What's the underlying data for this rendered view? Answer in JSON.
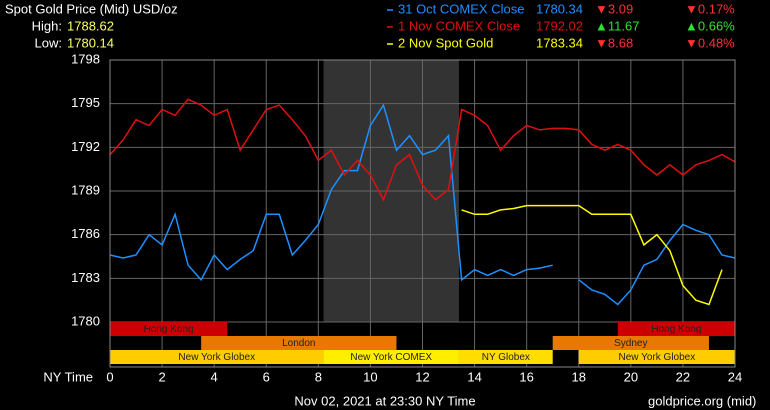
{
  "chart_data": {
    "type": "line",
    "title": "Spot Gold Price (Mid) USD/oz",
    "high_label": "High:",
    "high": 1788.62,
    "low_label": "Low:",
    "low": 1780.14,
    "x_label": "NY Time",
    "footer": "Nov 02, 2021 at 23:30 NY Time",
    "source": "goldprice.org (mid)",
    "xlim": [
      0,
      24
    ],
    "xticks": [
      0,
      2,
      4,
      6,
      8,
      10,
      12,
      14,
      16,
      18,
      20,
      22,
      24
    ],
    "ylim": [
      1780,
      1798
    ],
    "yticks": [
      1780,
      1783,
      1786,
      1789,
      1792,
      1795,
      1798
    ],
    "grid": true,
    "x": [
      0,
      0.5,
      1,
      1.5,
      2,
      2.5,
      3,
      3.5,
      4,
      4.5,
      5,
      5.5,
      6,
      6.5,
      7,
      7.5,
      8,
      8.5,
      9,
      9.5,
      10,
      10.5,
      11,
      11.5,
      12,
      12.5,
      13,
      13.5,
      14,
      14.5,
      15,
      15.5,
      16,
      16.5,
      17,
      17.5,
      18,
      18.5,
      19,
      19.5,
      20,
      20.5,
      21,
      21.5,
      22,
      22.5,
      23,
      23.5,
      24
    ],
    "series": [
      {
        "name": "31 Oct COMEX Close",
        "color": "#1e90ff",
        "close": 1780.34,
        "change": -3.09,
        "change_label": "▼3.09",
        "change_pct": -0.17,
        "change_pct_label": "▼0.17%",
        "values": [
          1784.6,
          1784.4,
          1784.6,
          1786.0,
          1785.3,
          1787.4,
          1783.9,
          1782.9,
          1784.6,
          1783.6,
          1784.3,
          1784.9,
          1787.4,
          1787.4,
          1784.6,
          1785.6,
          1786.7,
          1789.1,
          1790.4,
          1790.4,
          1793.5,
          1794.9,
          1791.8,
          1792.8,
          1791.5,
          1791.8,
          1792.8,
          1782.9,
          1783.6,
          1783.2,
          1783.6,
          1783.2,
          1783.6,
          1783.7,
          1783.9,
          null,
          1782.9,
          1782.2,
          1781.9,
          1781.2,
          1782.2,
          1783.9,
          1784.3,
          1785.6,
          1786.7,
          1786.3,
          1786.0,
          1784.6,
          1784.4
        ]
      },
      {
        "name": "1 Nov COMEX Close",
        "color": "#e01010",
        "close": 1792.02,
        "change": 11.67,
        "change_label": "▲11.67",
        "change_pct": 0.66,
        "change_pct_label": "▲0.66%",
        "values": [
          1791.5,
          1792.5,
          1793.9,
          1793.5,
          1794.6,
          1794.2,
          1795.3,
          1794.9,
          1794.2,
          1794.6,
          1791.8,
          1793.2,
          1794.6,
          1794.9,
          1793.9,
          1792.8,
          1791.1,
          1791.8,
          1790.1,
          1791.1,
          1790.1,
          1788.4,
          1790.8,
          1791.5,
          1789.4,
          1788.4,
          1789.1,
          1794.6,
          1794.2,
          1793.5,
          1791.8,
          1792.8,
          1793.5,
          1793.2,
          1793.3,
          1793.3,
          1793.2,
          1792.2,
          1791.8,
          1792.2,
          1791.8,
          1790.8,
          1790.1,
          1790.8,
          1790.1,
          1790.8,
          1791.1,
          1791.5,
          1791.0
        ]
      },
      {
        "name": "2 Nov Spot Gold",
        "color": "#ffff00",
        "close": 1783.34,
        "change": -8.68,
        "change_label": "▼8.68",
        "change_pct": -0.48,
        "change_pct_label": "▼0.48%",
        "values": [
          null,
          null,
          null,
          null,
          null,
          null,
          null,
          null,
          null,
          null,
          null,
          null,
          null,
          null,
          null,
          null,
          null,
          null,
          null,
          null,
          null,
          null,
          null,
          null,
          null,
          null,
          null,
          1787.7,
          1787.4,
          1787.4,
          1787.7,
          1787.8,
          1788.0,
          1788.0,
          1788.0,
          1788.0,
          1788.0,
          1787.4,
          1787.4,
          1787.4,
          1787.4,
          1785.3,
          1786.0,
          1784.9,
          1782.5,
          1781.5,
          1781.2,
          1783.6,
          null
        ]
      }
    ],
    "sessions": [
      {
        "name": "Hong Kong",
        "row": 1,
        "start": 0,
        "end": 4.5,
        "color": "#cc0000"
      },
      {
        "name": "Hong Kong",
        "row": 1,
        "start": 19.5,
        "end": 24,
        "color": "#cc0000"
      },
      {
        "name": "London",
        "row": 2,
        "start": 3.5,
        "end": 11,
        "color": "#e87800"
      },
      {
        "name": "Sydney",
        "row": 2,
        "start": 17,
        "end": 23,
        "color": "#e87800"
      },
      {
        "name": "New York Globex",
        "row": 3,
        "start": 0,
        "end": 8.2,
        "color": "#ffcc00"
      },
      {
        "name": "New York COMEX",
        "row": 3,
        "start": 8.2,
        "end": 13.4,
        "color": "#ffee00",
        "highlight": true
      },
      {
        "name": "NY Globex",
        "row": 3,
        "start": 13.4,
        "end": 17,
        "color": "#ffdd00"
      },
      {
        "name": "New York Globex",
        "row": 3,
        "start": 18,
        "end": 24,
        "color": "#ffcc00"
      }
    ]
  }
}
